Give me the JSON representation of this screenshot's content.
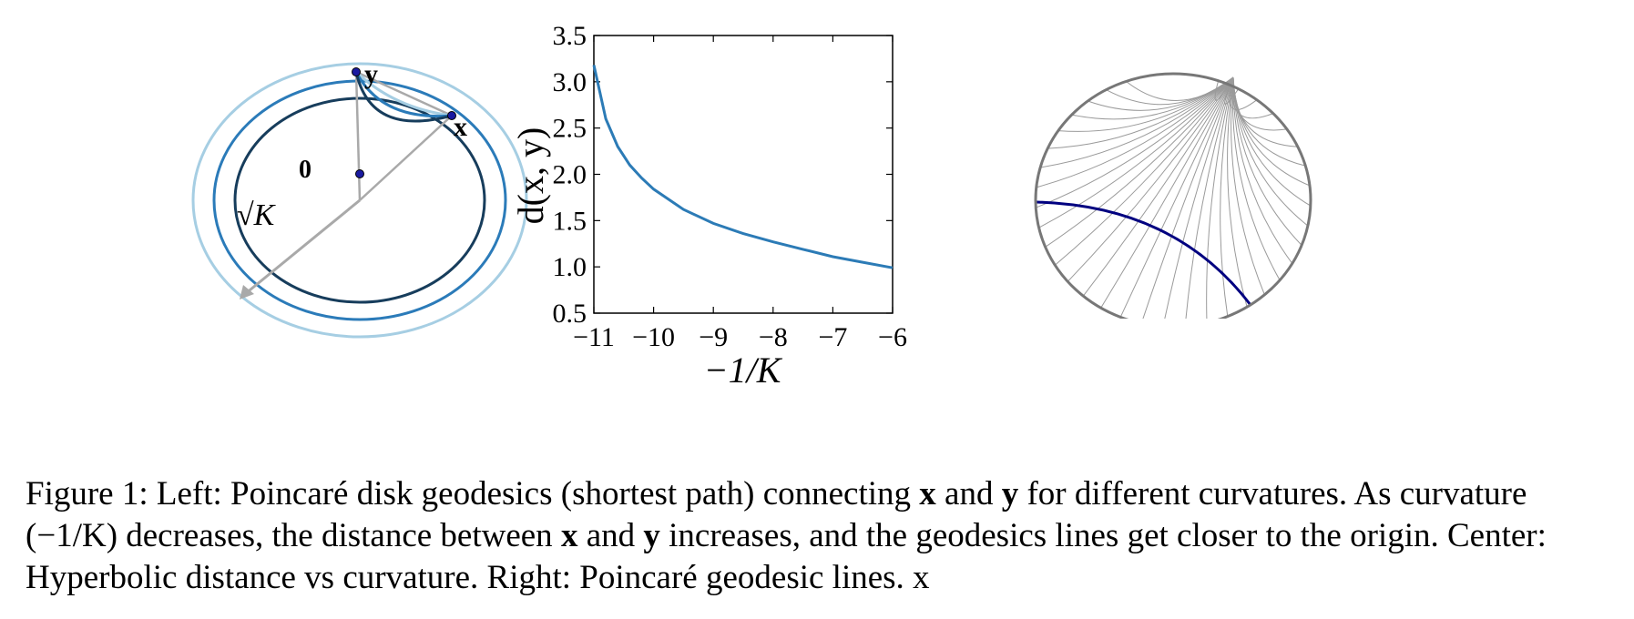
{
  "left_panel": {
    "label_y": "y",
    "label_x": "x",
    "label_origin": "0",
    "label_radius": "√K",
    "circle_colors": [
      "#a6cee3",
      "#2b7bb9",
      "#173d5c"
    ],
    "arrow_color": "#a9a9a9"
  },
  "chart_data": {
    "type": "line",
    "xlabel": "−1/K",
    "ylabel": "d(x, y)",
    "xlim": [
      -11,
      -6
    ],
    "ylim": [
      0.5,
      3.5
    ],
    "xticks": [
      "−11",
      "−10",
      "−9",
      "−8",
      "−7",
      "−6"
    ],
    "yticks": [
      "0.5",
      "1.0",
      "1.5",
      "2.0",
      "2.5",
      "3.0",
      "3.5"
    ],
    "line_color": "#2c7bb6",
    "series": [
      {
        "x": [
          -11,
          -10.8,
          -10.6,
          -10.4,
          -10.2,
          -10,
          -9.5,
          -9,
          -8.5,
          -8,
          -7.5,
          -7,
          -6.5,
          -6
        ],
        "y": [
          3.18,
          2.6,
          2.3,
          2.1,
          1.96,
          1.84,
          1.62,
          1.47,
          1.36,
          1.27,
          1.19,
          1.11,
          1.05,
          0.99
        ]
      }
    ]
  },
  "right_panel": {
    "disk_color": "#777777",
    "geodesic_color": "#9a9a9a",
    "highlight_color": "#000080"
  },
  "caption": {
    "p1": "Figure 1: Left: Poincaré disk geodesics (shortest path) connecting ",
    "x1": "x",
    "p2": " and ",
    "y1": "y",
    "p3": " for different curvatures. As curvature (−1/K) decreases, the distance between ",
    "x2": "x",
    "p4": " and ",
    "y2": "y",
    "p5": " increases, and the geodesics lines get closer to the origin. Center: Hyperbolic distance vs curvature. Right: Poincaré geodesic lines. x"
  }
}
